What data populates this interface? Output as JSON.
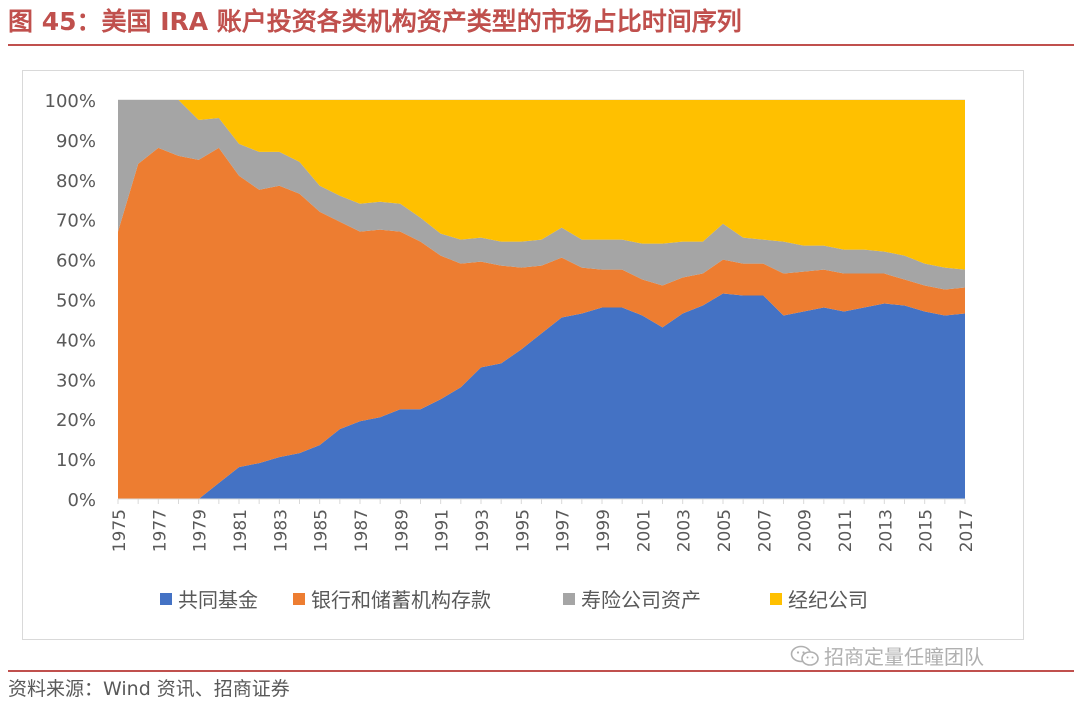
{
  "header": {
    "title": "图 45：美国 IRA 账户投资各类机构资产类型的市场占比时间序列"
  },
  "footer": {
    "source": "资料来源：Wind 资讯、招商证券"
  },
  "watermark": {
    "text": "招商定量任瞳团队",
    "icon": "wechat-icon"
  },
  "colors": {
    "fund": "#4472c4",
    "bank": "#ed7d31",
    "insurance": "#a5a5a5",
    "broker": "#ffc000",
    "title": "#c0504d",
    "grid": "#d9d9d9",
    "text": "#595959"
  },
  "chart_data": {
    "type": "area",
    "stacked": true,
    "title": "",
    "xlabel": "",
    "ylabel": "",
    "ylim": [
      0,
      100
    ],
    "y_ticks": [
      "0%",
      "10%",
      "20%",
      "30%",
      "40%",
      "50%",
      "60%",
      "70%",
      "80%",
      "90%",
      "100%"
    ],
    "x": [
      "1975",
      "1976",
      "1977",
      "1978",
      "1979",
      "1980",
      "1981",
      "1982",
      "1983",
      "1984",
      "1985",
      "1986",
      "1987",
      "1988",
      "1989",
      "1990",
      "1991",
      "1992",
      "1993",
      "1994",
      "1995",
      "1996",
      "1997",
      "1998",
      "1999",
      "2000",
      "2001",
      "2002",
      "2003",
      "2004",
      "2005",
      "2006",
      "2007",
      "2008",
      "2009",
      "2010",
      "2011",
      "2012",
      "2013",
      "2014",
      "2015",
      "2016",
      "2017"
    ],
    "x_tick_labels": [
      "1975",
      "1977",
      "1979",
      "1981",
      "1983",
      "1985",
      "1987",
      "1989",
      "1991",
      "1993",
      "1995",
      "1997",
      "1999",
      "2001",
      "2003",
      "2005",
      "2007",
      "2009",
      "2011",
      "2013",
      "2015",
      "2017"
    ],
    "legend_position": "bottom",
    "series": [
      {
        "name": "共同基金",
        "values": [
          0,
          0,
          0,
          0,
          0,
          4,
          8,
          9,
          10.5,
          11.5,
          13.5,
          17.5,
          19.5,
          20.5,
          22.5,
          22.5,
          25,
          28,
          33,
          34,
          37.5,
          41.5,
          45.5,
          46.5,
          48,
          48,
          46,
          43,
          46.5,
          48.5,
          51.5,
          51,
          51,
          46,
          47,
          48,
          47,
          48,
          49,
          48.5,
          47,
          46,
          46.5
        ]
      },
      {
        "name": "银行和储蓄机构存款",
        "values": [
          67,
          84,
          88,
          86,
          85,
          84,
          73,
          68.5,
          68,
          65,
          58.5,
          52,
          47.5,
          47,
          44.5,
          42,
          36,
          31,
          26.5,
          24.5,
          20.5,
          17,
          15,
          11.5,
          9.5,
          9.5,
          9,
          10.5,
          9,
          8,
          8.5,
          8,
          8,
          10.5,
          10,
          9.5,
          9.5,
          8.5,
          7.5,
          6.5,
          6.5,
          6.5,
          6.5
        ]
      },
      {
        "name": "寿险公司资产",
        "values": [
          33,
          16,
          12,
          14,
          10,
          7.5,
          8,
          9.5,
          8.5,
          8,
          6.5,
          6.5,
          7,
          7,
          7,
          6,
          5.5,
          6,
          6,
          6,
          6.5,
          6.5,
          7.5,
          7,
          7.5,
          7.5,
          9,
          10.5,
          9,
          8,
          9,
          6.5,
          6,
          8,
          6.5,
          6,
          6,
          6,
          5.5,
          6,
          5.5,
          5.5,
          4.5
        ]
      },
      {
        "name": "经纪公司",
        "values": [
          0,
          0,
          0,
          0,
          5,
          4.5,
          11,
          13,
          13,
          15.5,
          21.5,
          24,
          26,
          25.5,
          26,
          29.5,
          33.5,
          35,
          34.5,
          35.5,
          35.5,
          35,
          32,
          35,
          35,
          35,
          36,
          36,
          35.5,
          35.5,
          31,
          34.5,
          35,
          35.5,
          36.5,
          36.5,
          37.5,
          37.5,
          38,
          39,
          41,
          42,
          42.5
        ]
      }
    ]
  }
}
